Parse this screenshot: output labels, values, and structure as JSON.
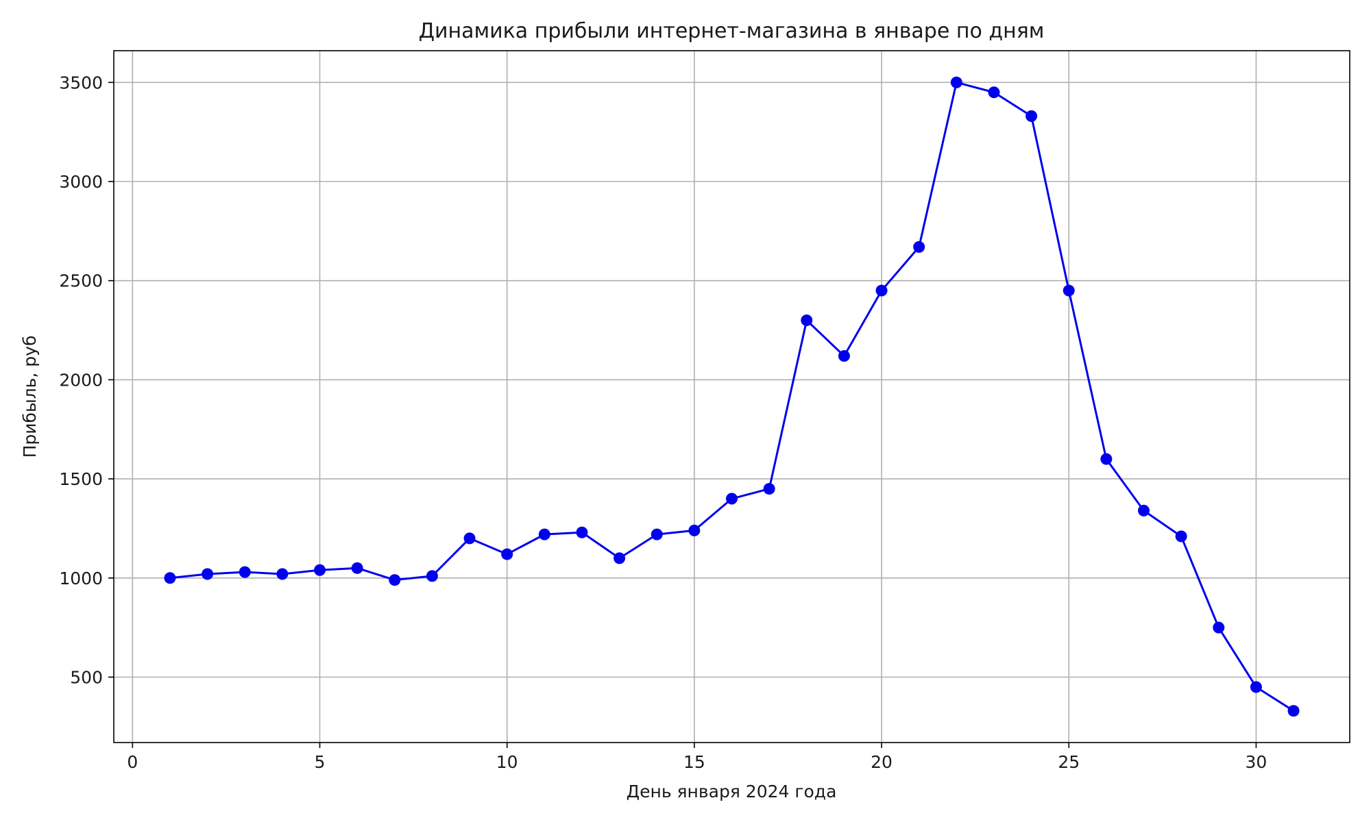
{
  "chart_data": {
    "type": "line",
    "title": "Динамика прибыли интернет-магазина в январе по дням",
    "xlabel": "День января 2024 года",
    "ylabel": "Прибыль, руб",
    "xlim": [
      -0.5,
      32.5
    ],
    "ylim": [
      170,
      3660
    ],
    "x_ticks": [
      0,
      5,
      10,
      15,
      20,
      25,
      30
    ],
    "y_ticks": [
      500,
      1000,
      1500,
      2000,
      2500,
      3000,
      3500
    ],
    "grid": true,
    "marker": "circle",
    "line_color": "#0000ee",
    "series": [
      {
        "x": [
          1,
          2,
          3,
          4,
          5,
          6,
          7,
          8,
          9,
          10,
          11,
          12,
          13,
          14,
          15,
          16,
          17,
          18,
          19,
          20,
          21,
          22,
          23,
          24,
          25,
          26,
          27,
          28,
          29,
          30,
          31
        ],
        "values": [
          1000,
          1020,
          1030,
          1020,
          1040,
          1050,
          990,
          1010,
          1200,
          1120,
          1220,
          1230,
          1100,
          1220,
          1240,
          1400,
          1450,
          2300,
          2120,
          2450,
          2670,
          3500,
          3450,
          3330,
          2450,
          1600,
          1340,
          1210,
          750,
          450,
          330
        ]
      }
    ]
  }
}
